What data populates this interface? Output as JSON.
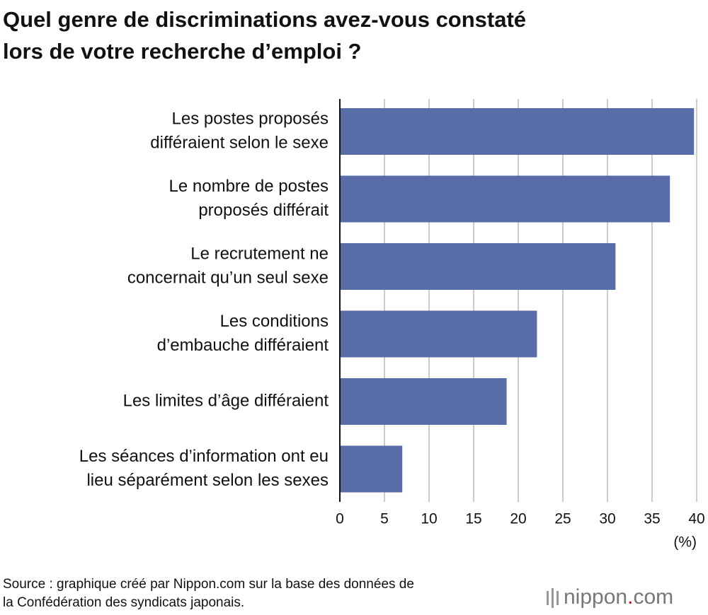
{
  "chart_data": {
    "type": "barh",
    "title": [
      "Quel genre de discriminations avez-vous constaté",
      "lors de votre recherche d’emploi ?"
    ],
    "categories": [
      [
        "Les postes proposés",
        "différaient selon le sexe"
      ],
      [
        "Le nombre de postes",
        "proposés différait"
      ],
      [
        "Le recrutement ne",
        "concernait qu’un seul sexe"
      ],
      [
        "Les conditions",
        "d’embauche différaient"
      ],
      [
        "Les limites d’âge différaient"
      ],
      [
        "Les séances d’information ont eu",
        "lieu séparément selon les sexes"
      ]
    ],
    "values": [
      39.7,
      37.0,
      30.9,
      22.1,
      18.7,
      7.0
    ],
    "color": "#586ca7",
    "xlim": [
      0,
      40
    ],
    "xticks": [
      0,
      5,
      10,
      15,
      20,
      25,
      30,
      35,
      40
    ],
    "x_unit": "(%)",
    "grid": true,
    "source": [
      "Source : graphique créé par Nippon.com sur la base des données de",
      "la Confédération des syndicats japonais."
    ],
    "logo": [
      "nippon",
      ".",
      "com"
    ]
  }
}
